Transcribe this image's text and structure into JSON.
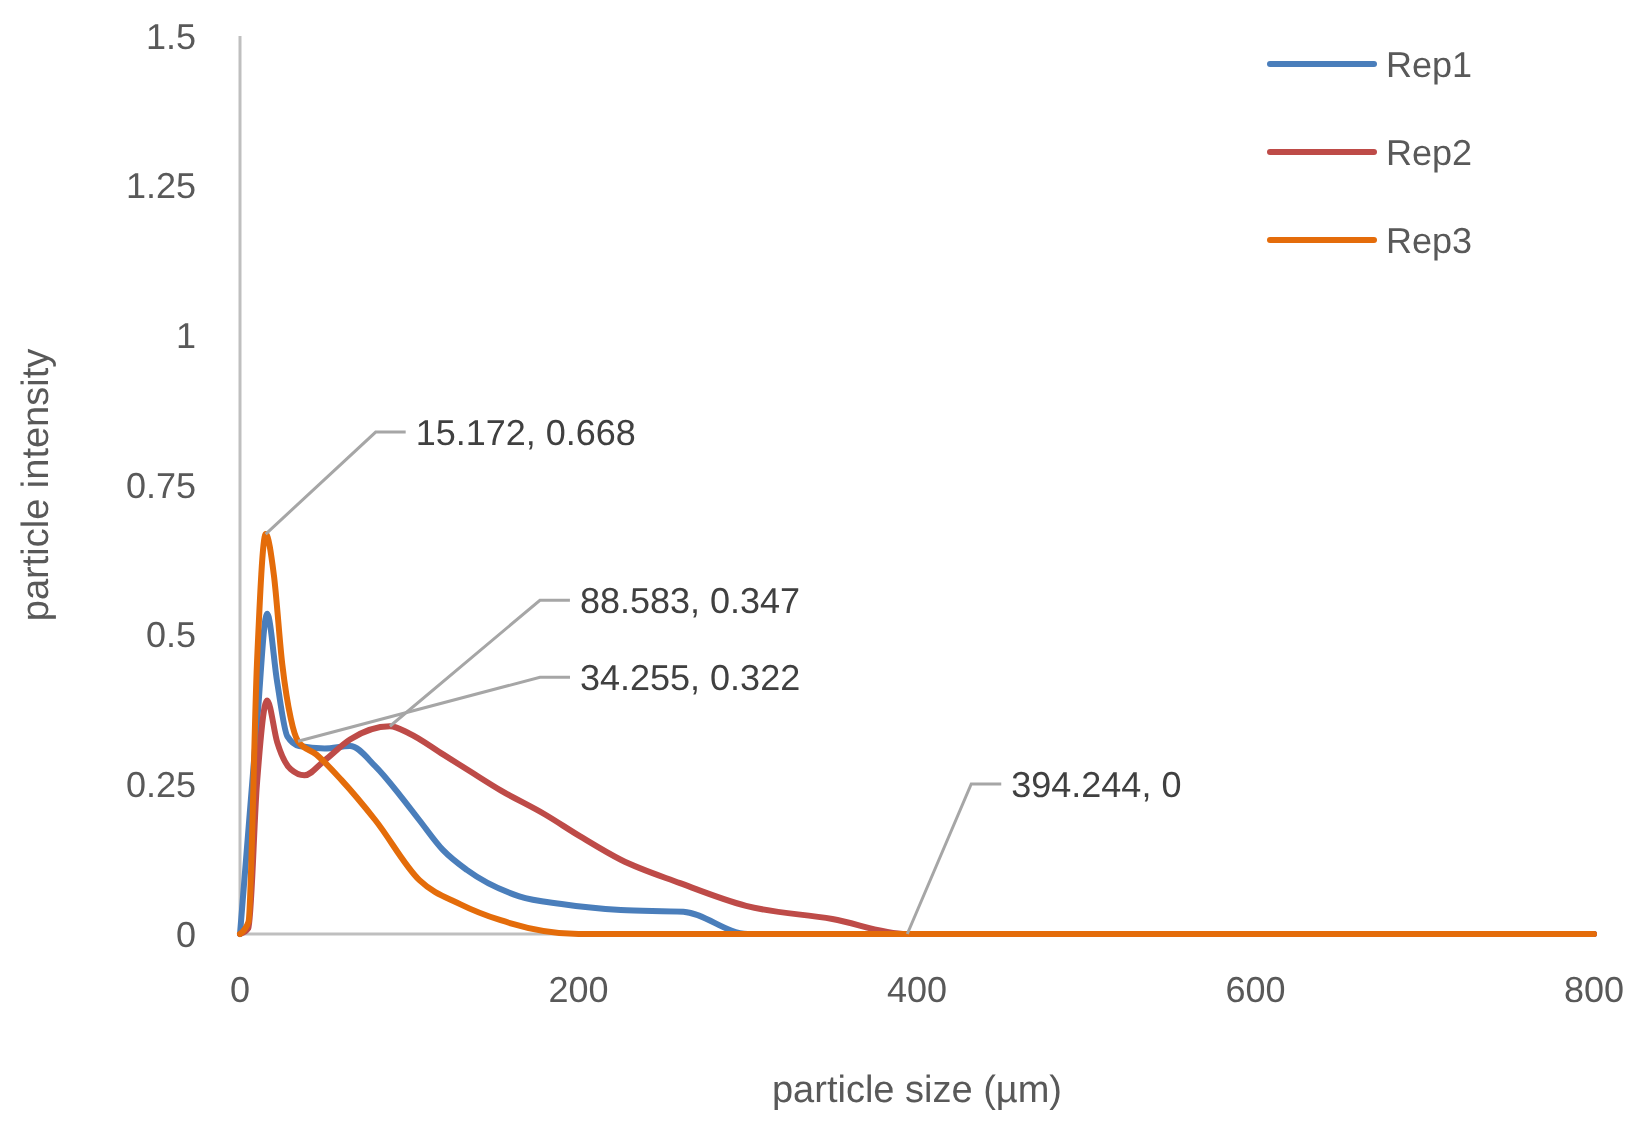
{
  "chart_data": {
    "type": "line",
    "xlabel": "particle size (µm)",
    "ylabel": "particle intensity",
    "xlim": [
      0,
      800
    ],
    "xticks": [
      0,
      200,
      400,
      600,
      800
    ],
    "ylim": [
      0,
      1.5
    ],
    "yticks": [
      0,
      0.25,
      0.5,
      0.75,
      1,
      1.25,
      1.5
    ],
    "grid": false,
    "legend": "top right",
    "marker": "none",
    "line_style": "solid",
    "series": [
      {
        "name": "Rep1",
        "color": "#4a7ebb",
        "x": [
          0,
          10,
          16,
          22,
          28,
          35,
          50,
          65,
          80,
          95,
          106,
          120,
          134,
          165,
          190,
          225,
          262,
          300,
          800
        ],
        "values": [
          0,
          0.35,
          0.535,
          0.42,
          0.33,
          0.314,
          0.31,
          0.314,
          0.28,
          0.23,
          0.19,
          0.14,
          0.107,
          0.063,
          0.05,
          0.04,
          0.037,
          0,
          0
        ]
      },
      {
        "name": "Rep2",
        "color": "#be4b48",
        "x": [
          0,
          5,
          10,
          16,
          22,
          30,
          38,
          50,
          65,
          88.583,
          100,
          120,
          138,
          154,
          180,
          201,
          225,
          260,
          299,
          350,
          394.244,
          800
        ],
        "values": [
          0,
          0.01,
          0.25,
          0.39,
          0.32,
          0.275,
          0.265,
          0.29,
          0.325,
          0.347,
          0.335,
          0.3,
          0.268,
          0.24,
          0.2,
          0.163,
          0.124,
          0.085,
          0.047,
          0.025,
          0,
          0
        ]
      },
      {
        "name": "Rep3",
        "color": "#e46c0a",
        "x": [
          0,
          5,
          10,
          15.172,
          20,
          25,
          30,
          34.255,
          45,
          60,
          80,
          106,
          130,
          154,
          200,
          800
        ],
        "values": [
          0,
          0.02,
          0.45,
          0.668,
          0.6,
          0.45,
          0.36,
          0.322,
          0.3,
          0.257,
          0.19,
          0.09,
          0.05,
          0.023,
          0,
          0
        ]
      }
    ],
    "annotations": [
      {
        "text": "15.172, 0.668",
        "x": 15.172,
        "y": 0.668
      },
      {
        "text": "88.583, 0.347",
        "x": 88.583,
        "y": 0.347
      },
      {
        "text": "34.255, 0.322",
        "x": 34.255,
        "y": 0.322
      },
      {
        "text": "394.244, 0",
        "x": 394.244,
        "y": 0
      }
    ]
  }
}
